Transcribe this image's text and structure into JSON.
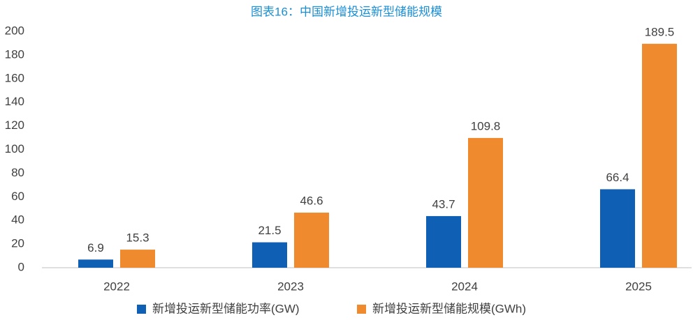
{
  "chart_data": {
    "type": "bar",
    "title": "图表16：中国新增投运新型储能规模",
    "categories": [
      "2022",
      "2023",
      "2024",
      "2025"
    ],
    "series": [
      {
        "name": "新增投运新型储能功率(GW)",
        "color": "#0f5fb5",
        "values": [
          6.9,
          21.5,
          43.7,
          66.4
        ]
      },
      {
        "name": "新增投运新型储能规模(GWh)",
        "color": "#f08a2e",
        "values": [
          15.3,
          46.6,
          109.8,
          189.5
        ]
      }
    ],
    "ylim": [
      0,
      200
    ],
    "yticks": [
      0,
      20,
      40,
      60,
      80,
      100,
      120,
      140,
      160,
      180,
      200
    ],
    "grid": false
  }
}
